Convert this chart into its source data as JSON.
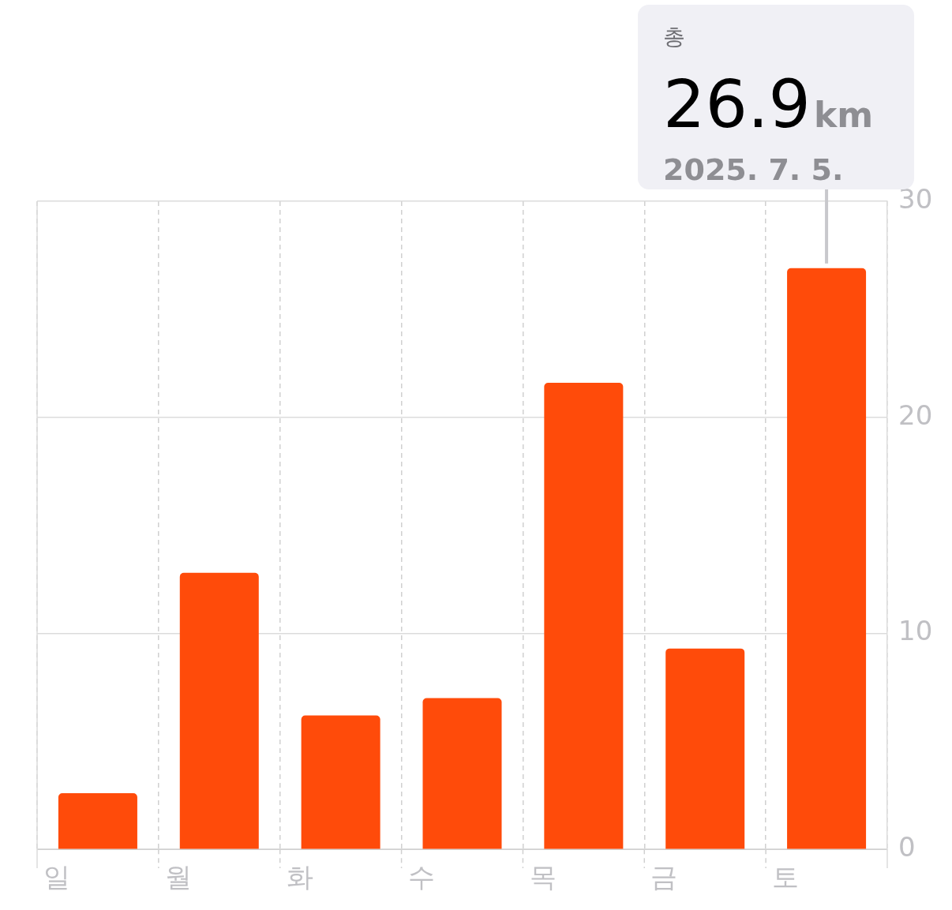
{
  "chart_data": {
    "type": "bar",
    "categories": [
      "일",
      "월",
      "화",
      "수",
      "목",
      "금",
      "토"
    ],
    "values": [
      2.6,
      12.8,
      6.2,
      7.0,
      21.6,
      9.3,
      26.9
    ],
    "color": "#ff4b0a",
    "ylim": [
      0,
      30
    ],
    "yticks": [
      0,
      10,
      20,
      30
    ],
    "grid": true,
    "annotations": [
      "총",
      {
        "text": "26.9km",
        "x": "토",
        "y": 26.9
      },
      "2025. 7. 5."
    ]
  }
}
